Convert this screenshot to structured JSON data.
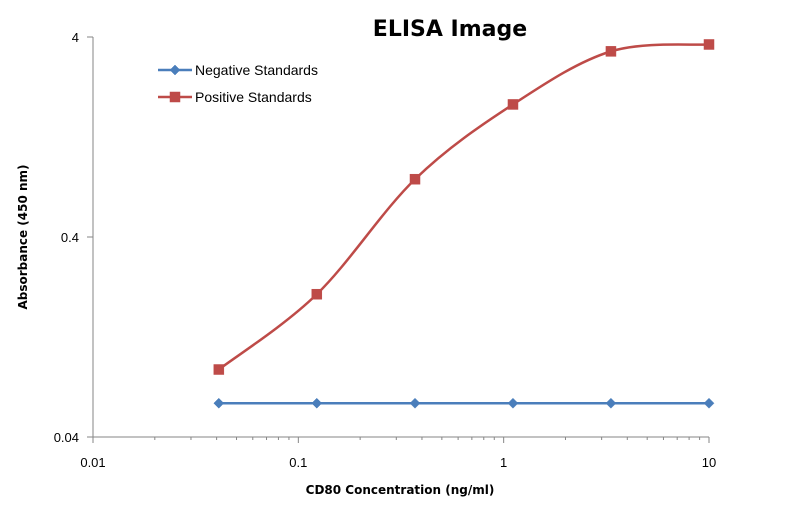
{
  "chart_data": {
    "type": "line",
    "title": "ELISA Image",
    "xlabel": "CD80 Concentration (ng/ml)",
    "ylabel": "Absorbance (450 nm)",
    "x_scale": "log",
    "y_scale": "log",
    "xlim": [
      0.01,
      10
    ],
    "ylim": [
      0.04,
      4
    ],
    "x_ticks": [
      "0.01",
      "0.1",
      "1",
      "10"
    ],
    "y_ticks": [
      "0.04",
      "0.4",
      "4"
    ],
    "legend_position": "top-left",
    "grid": false,
    "series": [
      {
        "name": "Negative Standards",
        "color": "#4a7ebb",
        "marker": "diamond",
        "x": [
          0.041,
          0.123,
          0.37,
          1.11,
          3.33,
          10
        ],
        "y": [
          0.059,
          0.059,
          0.059,
          0.059,
          0.059,
          0.059
        ]
      },
      {
        "name": "Positive Standards",
        "color": "#be4b48",
        "marker": "square",
        "x": [
          0.041,
          0.123,
          0.37,
          1.11,
          3.33,
          10
        ],
        "y": [
          0.087,
          0.207,
          0.778,
          1.84,
          3.39,
          3.67
        ]
      }
    ]
  }
}
